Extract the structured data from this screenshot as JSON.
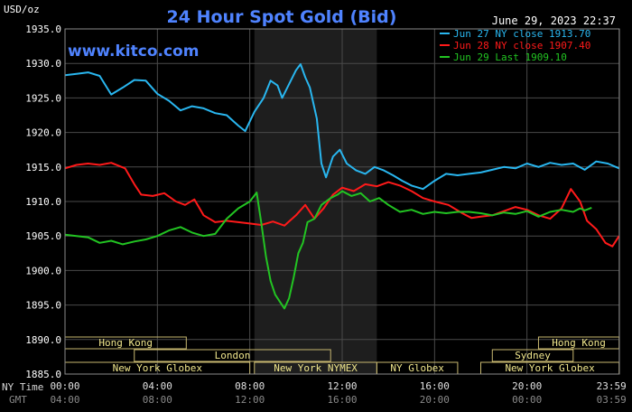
{
  "header": {
    "units": "USD/oz",
    "title": "24 Hour Spot Gold (Bid)",
    "timestamp": "June 29, 2023 22:37",
    "watermark": "www.kitco.com"
  },
  "legend": [
    {
      "label": "Jun 27 NY close 1913.70",
      "color": "#29b6ef"
    },
    {
      "label": "Jun 28 NY close 1907.40",
      "color": "#ff1a1a"
    },
    {
      "label": "Jun 29 Last 1909.10",
      "color": "#22c422"
    }
  ],
  "axis": {
    "row_label_ny": "NY Time",
    "row_label_gmt": "GMT",
    "y_ticks": [
      "1935.0",
      "1930.0",
      "1925.0",
      "1920.0",
      "1915.0",
      "1910.0",
      "1905.0",
      "1900.0",
      "1895.0",
      "1890.0",
      "1885.0"
    ],
    "x_ticks_ny": [
      "00:00",
      "04:00",
      "08:00",
      "12:00",
      "16:00",
      "20:00",
      "23:59"
    ],
    "x_ticks_gmt": [
      "04:00",
      "08:00",
      "12:00",
      "16:00",
      "20:00",
      "00:00",
      "03:59"
    ]
  },
  "sessions": [
    {
      "label": "Hong Kong",
      "row": 0,
      "start": 0.0,
      "end": 5.25
    },
    {
      "label": "Hong Kong",
      "row": 0,
      "start": 20.5,
      "end": 23.99
    },
    {
      "label": "London",
      "row": 1,
      "start": 3.0,
      "end": 11.5
    },
    {
      "label": "Sydney",
      "row": 1,
      "start": 18.5,
      "end": 22.0
    },
    {
      "label": "New York Globex",
      "row": 2,
      "start": 0.0,
      "end": 8.0
    },
    {
      "label": "New York NYMEX",
      "row": 2,
      "start": 8.2,
      "end": 13.5
    },
    {
      "label": "NY Globex",
      "row": 2,
      "start": 13.5,
      "end": 17.0
    },
    {
      "label": "New York Globex",
      "row": 2,
      "start": 18.0,
      "end": 23.99
    }
  ],
  "chart_data": {
    "type": "line",
    "title": "24 Hour Spot Gold (Bid)",
    "ylabel": "USD/oz",
    "xlabel": "NY Time",
    "xlim": [
      0,
      24
    ],
    "ylim": [
      1885,
      1935
    ],
    "grid": true,
    "shaded_region_hours": [
      8.2,
      13.5
    ],
    "series": [
      {
        "name": "Jun 27 NY close 1913.70",
        "color": "#29b6ef",
        "points": [
          [
            0,
            1928.3
          ],
          [
            0.5,
            1928.5
          ],
          [
            1.0,
            1928.7
          ],
          [
            1.5,
            1928.2
          ],
          [
            2.0,
            1925.5
          ],
          [
            2.5,
            1926.5
          ],
          [
            3.0,
            1927.6
          ],
          [
            3.5,
            1927.5
          ],
          [
            4.0,
            1925.6
          ],
          [
            4.5,
            1924.6
          ],
          [
            5.0,
            1923.2
          ],
          [
            5.5,
            1923.8
          ],
          [
            6.0,
            1923.5
          ],
          [
            6.5,
            1922.8
          ],
          [
            7.0,
            1922.5
          ],
          [
            7.5,
            1921.0
          ],
          [
            7.8,
            1920.2
          ],
          [
            8.2,
            1923.0
          ],
          [
            8.6,
            1925.0
          ],
          [
            8.9,
            1927.5
          ],
          [
            9.2,
            1926.8
          ],
          [
            9.4,
            1925.0
          ],
          [
            9.7,
            1927.0
          ],
          [
            10.0,
            1929.0
          ],
          [
            10.2,
            1929.9
          ],
          [
            10.4,
            1928.0
          ],
          [
            10.6,
            1926.5
          ],
          [
            10.9,
            1922.0
          ],
          [
            11.1,
            1915.5
          ],
          [
            11.3,
            1913.5
          ],
          [
            11.6,
            1916.5
          ],
          [
            11.9,
            1917.5
          ],
          [
            12.2,
            1915.5
          ],
          [
            12.6,
            1914.5
          ],
          [
            13.0,
            1914.0
          ],
          [
            13.4,
            1915.0
          ],
          [
            13.8,
            1914.5
          ],
          [
            14.2,
            1913.8
          ],
          [
            14.6,
            1913.0
          ],
          [
            15.0,
            1912.3
          ],
          [
            15.5,
            1911.8
          ],
          [
            16.0,
            1913.0
          ],
          [
            16.5,
            1914.0
          ],
          [
            17.0,
            1913.8
          ],
          [
            17.5,
            1914.0
          ],
          [
            18.0,
            1914.2
          ],
          [
            18.5,
            1914.6
          ],
          [
            19.0,
            1915.0
          ],
          [
            19.5,
            1914.8
          ],
          [
            20.0,
            1915.5
          ],
          [
            20.5,
            1915.0
          ],
          [
            21.0,
            1915.6
          ],
          [
            21.5,
            1915.3
          ],
          [
            22.0,
            1915.5
          ],
          [
            22.5,
            1914.6
          ],
          [
            23.0,
            1915.8
          ],
          [
            23.5,
            1915.5
          ],
          [
            23.99,
            1914.8
          ]
        ]
      },
      {
        "name": "Jun 28 NY close 1907.40",
        "color": "#ff1a1a",
        "points": [
          [
            0,
            1914.8
          ],
          [
            0.5,
            1915.3
          ],
          [
            1.0,
            1915.5
          ],
          [
            1.5,
            1915.3
          ],
          [
            2.0,
            1915.6
          ],
          [
            2.6,
            1914.8
          ],
          [
            3.0,
            1912.5
          ],
          [
            3.3,
            1911.0
          ],
          [
            3.8,
            1910.8
          ],
          [
            4.3,
            1911.2
          ],
          [
            4.8,
            1910.0
          ],
          [
            5.2,
            1909.5
          ],
          [
            5.6,
            1910.3
          ],
          [
            6.0,
            1908.0
          ],
          [
            6.5,
            1907.0
          ],
          [
            7.0,
            1907.2
          ],
          [
            7.5,
            1907.0
          ],
          [
            8.0,
            1906.8
          ],
          [
            8.5,
            1906.6
          ],
          [
            9.0,
            1907.1
          ],
          [
            9.5,
            1906.5
          ],
          [
            10.0,
            1908.0
          ],
          [
            10.4,
            1909.5
          ],
          [
            10.8,
            1907.5
          ],
          [
            11.2,
            1909.0
          ],
          [
            11.6,
            1911.0
          ],
          [
            12.0,
            1912.0
          ],
          [
            12.5,
            1911.5
          ],
          [
            13.0,
            1912.5
          ],
          [
            13.5,
            1912.2
          ],
          [
            14.0,
            1912.8
          ],
          [
            14.5,
            1912.3
          ],
          [
            15.0,
            1911.5
          ],
          [
            15.5,
            1910.5
          ],
          [
            16.0,
            1910.0
          ],
          [
            16.6,
            1909.5
          ],
          [
            17.2,
            1908.3
          ],
          [
            17.6,
            1907.6
          ],
          [
            18.0,
            1907.8
          ],
          [
            18.5,
            1908.0
          ],
          [
            19.0,
            1908.6
          ],
          [
            19.5,
            1909.2
          ],
          [
            20.0,
            1908.8
          ],
          [
            20.5,
            1908.0
          ],
          [
            21.0,
            1907.5
          ],
          [
            21.5,
            1909.0
          ],
          [
            21.9,
            1911.8
          ],
          [
            22.3,
            1910.0
          ],
          [
            22.6,
            1907.2
          ],
          [
            23.0,
            1906.0
          ],
          [
            23.4,
            1904.0
          ],
          [
            23.7,
            1903.5
          ],
          [
            23.99,
            1905.0
          ]
        ]
      },
      {
        "name": "Jun 29 Last 1909.10",
        "color": "#22c422",
        "points": [
          [
            0,
            1905.2
          ],
          [
            0.5,
            1905.0
          ],
          [
            1.0,
            1904.8
          ],
          [
            1.5,
            1904.0
          ],
          [
            2.0,
            1904.3
          ],
          [
            2.5,
            1903.8
          ],
          [
            3.0,
            1904.2
          ],
          [
            3.5,
            1904.5
          ],
          [
            4.0,
            1905.0
          ],
          [
            4.5,
            1905.8
          ],
          [
            5.0,
            1906.3
          ],
          [
            5.5,
            1905.5
          ],
          [
            6.0,
            1905.0
          ],
          [
            6.5,
            1905.3
          ],
          [
            7.0,
            1907.5
          ],
          [
            7.5,
            1909.0
          ],
          [
            8.0,
            1910.0
          ],
          [
            8.3,
            1911.3
          ],
          [
            8.5,
            1906.8
          ],
          [
            8.7,
            1902.0
          ],
          [
            8.9,
            1898.5
          ],
          [
            9.1,
            1896.5
          ],
          [
            9.3,
            1895.5
          ],
          [
            9.5,
            1894.5
          ],
          [
            9.7,
            1896.0
          ],
          [
            9.9,
            1899.0
          ],
          [
            10.1,
            1902.5
          ],
          [
            10.3,
            1904.0
          ],
          [
            10.5,
            1907.0
          ],
          [
            10.8,
            1907.5
          ],
          [
            11.1,
            1909.5
          ],
          [
            11.5,
            1910.5
          ],
          [
            11.8,
            1911.0
          ],
          [
            12.0,
            1911.5
          ],
          [
            12.4,
            1910.8
          ],
          [
            12.8,
            1911.2
          ],
          [
            13.2,
            1910.0
          ],
          [
            13.6,
            1910.5
          ],
          [
            14.0,
            1909.5
          ],
          [
            14.5,
            1908.5
          ],
          [
            15.0,
            1908.8
          ],
          [
            15.5,
            1908.2
          ],
          [
            16.0,
            1908.5
          ],
          [
            16.5,
            1908.3
          ],
          [
            17.0,
            1908.5
          ],
          [
            17.5,
            1908.5
          ],
          [
            18.0,
            1908.3
          ],
          [
            18.5,
            1908.0
          ],
          [
            19.0,
            1908.4
          ],
          [
            19.5,
            1908.2
          ],
          [
            20.0,
            1908.6
          ],
          [
            20.5,
            1907.8
          ],
          [
            21.0,
            1908.5
          ],
          [
            21.5,
            1908.8
          ],
          [
            22.0,
            1908.5
          ],
          [
            22.3,
            1909.0
          ],
          [
            22.5,
            1908.7
          ],
          [
            22.8,
            1909.1
          ]
        ]
      }
    ]
  }
}
